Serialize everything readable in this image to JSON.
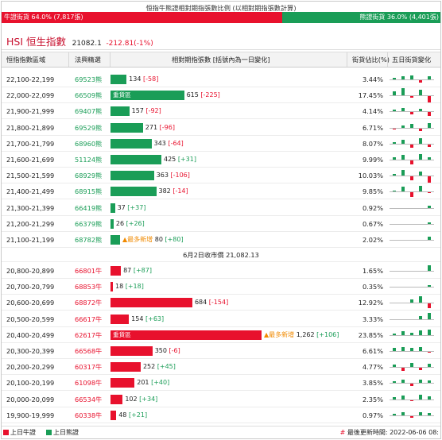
{
  "header": {
    "title": "恒指牛熊證相對期指張數比例 (以相對期指張數計算)",
    "bull_label": "牛證街貨 64.0% (7,817張)",
    "bear_label": "熊證街貨 36.0% (4,401張)",
    "bull_pct": 64.0,
    "bear_pct": 36.0
  },
  "index": {
    "name": "HSI 恒生指數",
    "price": "21082.1",
    "change": "-212.81(-1%)"
  },
  "table": {
    "headers": {
      "range": "恒指指數區域",
      "code": "法興精選",
      "bar": "相對期指張數 [括號內為一日變化]",
      "pct": "街貨佔比(%)",
      "spark": "五日街貨變化"
    },
    "max_contracts": 1262,
    "bear_rows": [
      {
        "range": "22,100-22,199",
        "code": "69523熊",
        "value": 134,
        "change": "[-58]",
        "chg_type": "neg",
        "pct": "3.44%",
        "heavy": "",
        "new": "",
        "spark": [
          0.2,
          0.4,
          0.6,
          -0.3,
          0.5
        ]
      },
      {
        "range": "22,000-22,099",
        "code": "66509熊",
        "value": 615,
        "change": "[-225]",
        "chg_type": "neg",
        "pct": "17.45%",
        "heavy": "重貨區",
        "new": "",
        "spark": [
          0.6,
          1.0,
          -0.2,
          0.8,
          -0.9
        ]
      },
      {
        "range": "21,900-21,999",
        "code": "69407熊",
        "value": 157,
        "change": "[-92]",
        "chg_type": "neg",
        "pct": "4.14%",
        "heavy": "",
        "new": "",
        "spark": [
          0.3,
          0.5,
          -0.3,
          0.4,
          -0.5
        ]
      },
      {
        "range": "21,800-21,899",
        "code": "69529熊",
        "value": 271,
        "change": "[-96]",
        "chg_type": "neg",
        "pct": "6.71%",
        "heavy": "",
        "new": "",
        "spark": [
          -0.1,
          0.3,
          0.5,
          -0.4,
          0.6
        ]
      },
      {
        "range": "21,700-21,799",
        "code": "68960熊",
        "value": 343,
        "change": "[-64]",
        "chg_type": "neg",
        "pct": "8.07%",
        "heavy": "",
        "new": "",
        "spark": [
          0.2,
          0.5,
          -0.5,
          0.7,
          -0.4
        ]
      },
      {
        "range": "21,600-21,699",
        "code": "51124熊",
        "value": 425,
        "change": "[+31]",
        "chg_type": "pos",
        "pct": "9.99%",
        "heavy": "",
        "new": "",
        "spark": [
          0.3,
          0.7,
          -0.6,
          0.8,
          0.3
        ]
      },
      {
        "range": "21,500-21,599",
        "code": "68929熊",
        "value": 363,
        "change": "[-106]",
        "chg_type": "neg",
        "pct": "10.03%",
        "heavy": "",
        "new": "",
        "spark": [
          0.2,
          0.8,
          -0.5,
          0.6,
          -0.9
        ]
      },
      {
        "range": "21,400-21,499",
        "code": "68915熊",
        "value": 382,
        "change": "[-14]",
        "chg_type": "neg",
        "pct": "9.85%",
        "heavy": "",
        "new": "",
        "spark": [
          0.1,
          0.7,
          -0.6,
          0.8,
          -0.1
        ]
      },
      {
        "range": "21,300-21,399",
        "code": "66419熊",
        "value": 37,
        "change": "[+37]",
        "chg_type": "pos",
        "pct": "0.92%",
        "heavy": "",
        "new": "",
        "spark": [
          0,
          0,
          0,
          0,
          0.3
        ]
      },
      {
        "range": "21,200-21,299",
        "code": "66379熊",
        "value": 26,
        "change": "[+26]",
        "chg_type": "pos",
        "pct": "0.67%",
        "heavy": "",
        "new": "",
        "spark": [
          0,
          0,
          0,
          0,
          0.25
        ]
      },
      {
        "range": "21,100-21,199",
        "code": "68782熊",
        "value": 80,
        "change": "[+80]",
        "chg_type": "pos",
        "pct": "2.02%",
        "heavy": "",
        "new": "▲最多新增",
        "spark": [
          0,
          0,
          0,
          0,
          0.5
        ]
      }
    ],
    "close_text": "6月2日收市價 21,082.13",
    "bull_rows": [
      {
        "range": "20,800-20,899",
        "code": "66801牛",
        "value": 87,
        "change": "[+87]",
        "chg_type": "pos",
        "pct": "1.65%",
        "heavy": "",
        "new": "",
        "spark": [
          0,
          0,
          0,
          0,
          0.8
        ]
      },
      {
        "range": "20,700-20,799",
        "code": "68853牛",
        "value": 18,
        "change": "[+18]",
        "chg_type": "pos",
        "pct": "0.35%",
        "heavy": "",
        "new": "",
        "spark": [
          0,
          0,
          0,
          0,
          0.2
        ]
      },
      {
        "range": "20,600-20,699",
        "code": "68872牛",
        "value": 684,
        "change": "[-154]",
        "chg_type": "neg",
        "pct": "12.92%",
        "heavy": "",
        "new": "",
        "spark": [
          0,
          0,
          0.5,
          0.9,
          -0.6
        ]
      },
      {
        "range": "20,500-20,599",
        "code": "66617牛",
        "value": 154,
        "change": "[+63]",
        "chg_type": "pos",
        "pct": "3.33%",
        "heavy": "",
        "new": "",
        "spark": [
          0,
          0,
          0,
          0.4,
          0.8
        ]
      },
      {
        "range": "20,400-20,499",
        "code": "62617牛",
        "value": 1262,
        "change": "[+106]",
        "chg_type": "pos",
        "pct": "23.85%",
        "heavy": "重貨區",
        "new": "▲最多新增",
        "spark": [
          0.2,
          0.5,
          0.3,
          0.6,
          0.8
        ]
      },
      {
        "range": "20,300-20,399",
        "code": "66568牛",
        "value": 350,
        "change": "[-6]",
        "chg_type": "neg",
        "pct": "6.61%",
        "heavy": "",
        "new": "",
        "spark": [
          0.4,
          0.6,
          0.5,
          0.6,
          -0.1
        ]
      },
      {
        "range": "20,200-20,299",
        "code": "60317牛",
        "value": 252,
        "change": "[+45]",
        "chg_type": "pos",
        "pct": "4.77%",
        "heavy": "",
        "new": "",
        "spark": [
          0.3,
          -0.4,
          0.6,
          -0.3,
          0.5
        ]
      },
      {
        "range": "20,100-20,199",
        "code": "61098牛",
        "value": 201,
        "change": "[+40]",
        "chg_type": "pos",
        "pct": "3.85%",
        "heavy": "",
        "new": "",
        "spark": [
          0.3,
          0.5,
          -0.3,
          0.5,
          0.4
        ]
      },
      {
        "range": "20,000-20,099",
        "code": "66534牛",
        "value": 102,
        "change": "[+34]",
        "chg_type": "pos",
        "pct": "2.35%",
        "heavy": "",
        "new": "",
        "spark": [
          0.3,
          0.5,
          -0.2,
          0.6,
          0.4
        ]
      },
      {
        "range": "19,900-19,999",
        "code": "60338牛",
        "value": 48,
        "change": "[+21]",
        "chg_type": "pos",
        "pct": "0.97%",
        "heavy": "",
        "new": "",
        "spark": [
          0.2,
          0.4,
          -0.2,
          0.4,
          0.3
        ]
      }
    ]
  },
  "footer": {
    "legend_bull": "上日牛證",
    "legend_bear": "上日熊證",
    "update_hash": "#",
    "update_text": "最後更新時間: 2022-06-06 08:"
  },
  "colors": {
    "bull": "#e8112d",
    "bear": "#1a9d57",
    "new": "#f08a00"
  }
}
